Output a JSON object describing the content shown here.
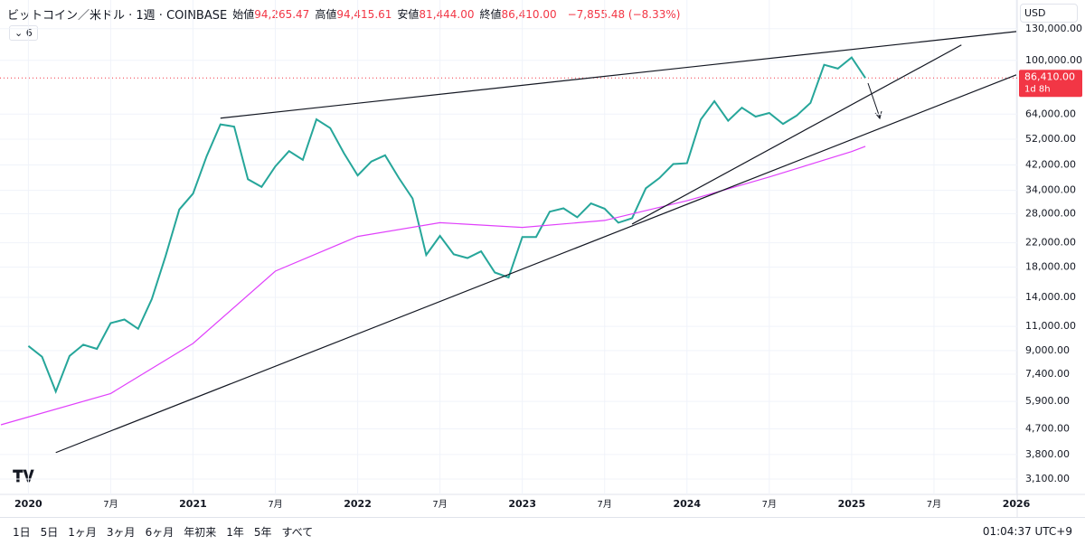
{
  "header": {
    "symbol": "ビットコイン／米ドル · 1週 · COINBASE",
    "ohlc": [
      {
        "label": "始値",
        "value": "94,265.47"
      },
      {
        "label": "高値",
        "value": "94,415.61"
      },
      {
        "label": "安値",
        "value": "81,444.00"
      },
      {
        "label": "終値",
        "value": "86,410.00"
      }
    ],
    "change": "−7,855.48 (−8.33%)",
    "indicator_count": "6",
    "currency": "USD"
  },
  "chart_data": {
    "type": "line",
    "log_scale": true,
    "grid": true,
    "xlim": [
      "2019-11",
      "2026-01"
    ],
    "ylim": [
      2770,
      165000
    ],
    "xticks": [
      {
        "value": "2020-01",
        "label": "2020"
      },
      {
        "value": "2020-07",
        "label": "7月"
      },
      {
        "value": "2021-01",
        "label": "2021"
      },
      {
        "value": "2021-07",
        "label": "7月"
      },
      {
        "value": "2022-01",
        "label": "2022"
      },
      {
        "value": "2022-07",
        "label": "7月"
      },
      {
        "value": "2023-01",
        "label": "2023"
      },
      {
        "value": "2023-07",
        "label": "7月"
      },
      {
        "value": "2024-01",
        "label": "2024"
      },
      {
        "value": "2024-07",
        "label": "7月"
      },
      {
        "value": "2025-01",
        "label": "2025"
      },
      {
        "value": "2025-07",
        "label": "7月"
      },
      {
        "value": "2026-01",
        "label": "2026"
      }
    ],
    "yticks": [
      {
        "value": 130000,
        "label": "130,000.00"
      },
      {
        "value": 100000,
        "label": "100,000.00"
      },
      {
        "value": 64000,
        "label": "64,000.00"
      },
      {
        "value": 52000,
        "label": "52,000.00"
      },
      {
        "value": 42000,
        "label": "42,000.00"
      },
      {
        "value": 34000,
        "label": "34,000.00"
      },
      {
        "value": 28000,
        "label": "28,000.00"
      },
      {
        "value": 22000,
        "label": "22,000.00"
      },
      {
        "value": 18000,
        "label": "18,000.00"
      },
      {
        "value": 14000,
        "label": "14,000.00"
      },
      {
        "value": 11000,
        "label": "11,000.00"
      },
      {
        "value": 9000,
        "label": "9,000.00"
      },
      {
        "value": 7400,
        "label": "7,400.00"
      },
      {
        "value": 5900,
        "label": "5,900.00"
      },
      {
        "value": 4700,
        "label": "4,700.00"
      },
      {
        "value": 3800,
        "label": "3,800.00"
      },
      {
        "value": 3100,
        "label": "3,100.00"
      }
    ],
    "series": [
      {
        "color": "#26a69a",
        "x": [
          "2020-01",
          "2020-02",
          "2020-03",
          "2020-04",
          "2020-05",
          "2020-06",
          "2020-07",
          "2020-08",
          "2020-09",
          "2020-10",
          "2020-11",
          "2020-12",
          "2021-01",
          "2021-02",
          "2021-03",
          "2021-04",
          "2021-05",
          "2021-06",
          "2021-07",
          "2021-08",
          "2021-09",
          "2021-10",
          "2021-11",
          "2021-12",
          "2022-01",
          "2022-02",
          "2022-03",
          "2022-04",
          "2022-05",
          "2022-06",
          "2022-07",
          "2022-08",
          "2022-09",
          "2022-10",
          "2022-11",
          "2022-12",
          "2023-01",
          "2023-02",
          "2023-03",
          "2023-04",
          "2023-05",
          "2023-06",
          "2023-07",
          "2023-08",
          "2023-09",
          "2023-10",
          "2023-11",
          "2023-12",
          "2024-01",
          "2024-02",
          "2024-03",
          "2024-04",
          "2024-05",
          "2024-06",
          "2024-07",
          "2024-08",
          "2024-09",
          "2024-10",
          "2024-11",
          "2024-12",
          "2025-01",
          "2025-02"
        ],
        "values": [
          9350,
          8550,
          6400,
          8600,
          9450,
          9130,
          11300,
          11650,
          10780,
          13800,
          19700,
          29000,
          33100,
          45200,
          58800,
          57700,
          37300,
          35000,
          41500,
          47100,
          43800,
          61300,
          57000,
          46300,
          38500,
          43200,
          45500,
          37700,
          31800,
          19900,
          23300,
          20000,
          19400,
          20500,
          17200,
          16500,
          23100,
          23100,
          28500,
          29300,
          27200,
          30500,
          29200,
          26000,
          27000,
          34600,
          37700,
          42300,
          42600,
          61200,
          71300,
          60600,
          67500,
          62700,
          64600,
          59000,
          63300,
          70300,
          96400,
          93400,
          102400,
          86410
        ]
      },
      {
        "color": "#e040fb",
        "x": [
          "2019-11",
          "2020-07",
          "2021-01",
          "2021-07",
          "2022-01",
          "2022-07",
          "2023-01",
          "2023-07",
          "2024-01",
          "2024-07",
          "2025-01",
          "2025-02"
        ],
        "values": [
          4860,
          6300,
          9550,
          17400,
          23200,
          26000,
          25000,
          26500,
          31200,
          38000,
          46900,
          49000
        ]
      }
    ],
    "trendlines": [
      {
        "x": [
          "2021-03",
          "2026-01"
        ],
        "values": [
          61900,
          127000
        ]
      },
      {
        "x": [
          "2020-03",
          "2026-01"
        ],
        "values": [
          3860,
          88700
        ]
      },
      {
        "x": [
          "2023-09",
          "2025-09"
        ],
        "values": [
          25700,
          113600
        ]
      }
    ],
    "last_price": {
      "value": 86410,
      "label": "86,410.00",
      "countdown": "1d 8h"
    }
  },
  "toolbar": {
    "ranges": [
      "1日",
      "5日",
      "1ヶ月",
      "3ヶ月",
      "6ヶ月",
      "年初来",
      "1年",
      "5年",
      "すべて"
    ],
    "time": "01:04:37 UTC+9"
  }
}
